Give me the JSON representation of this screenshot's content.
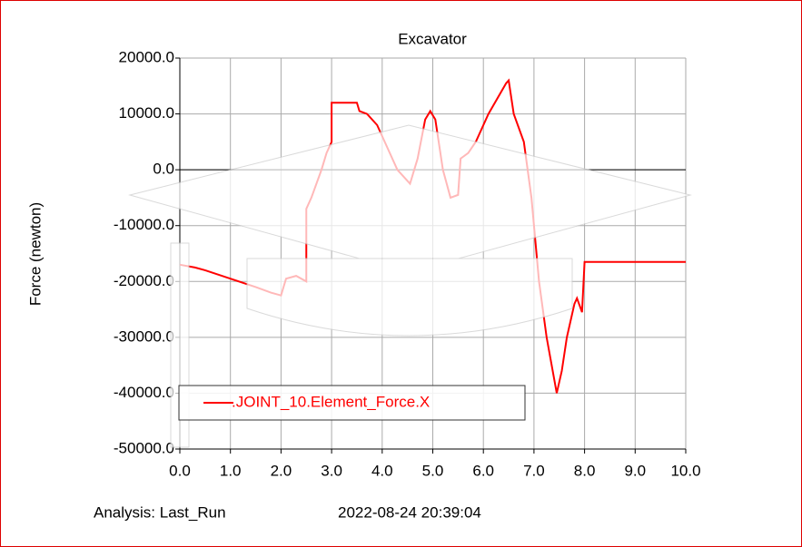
{
  "chart_data": {
    "type": "line",
    "title": "Excavator",
    "y_label": "Force (newton)",
    "x": [
      0,
      0.3,
      0.5,
      1.0,
      1.5,
      1.8,
      2.0,
      2.1,
      2.3,
      2.5,
      2.5,
      2.6,
      2.8,
      2.9,
      3.0,
      3.0,
      3.5,
      3.55,
      3.7,
      3.9,
      4.1,
      4.3,
      4.5,
      4.55,
      4.7,
      4.85,
      4.95,
      5.05,
      5.2,
      5.35,
      5.5,
      5.55,
      5.7,
      5.85,
      6.1,
      6.45,
      6.5,
      6.6,
      6.8,
      6.95,
      7.1,
      7.25,
      7.45,
      7.55,
      7.65,
      7.8,
      7.85,
      7.95,
      8.0,
      10.0
    ],
    "series": [
      {
        "name": ".JOINT_10.Element_Force.X",
        "color": "#ff0000",
        "values": [
          -17000,
          -17500,
          -18000,
          -19500,
          -21000,
          -22000,
          -22500,
          -19500,
          -19000,
          -20000,
          -7000,
          -5000,
          0,
          3000,
          5000,
          12000,
          12000,
          10500,
          10000,
          8000,
          4000,
          0,
          -2000,
          -2500,
          2000,
          9000,
          10500,
          9000,
          0,
          -5000,
          -4500,
          2000,
          3000,
          5000,
          10000,
          15500,
          16000,
          10000,
          5000,
          -5000,
          -20000,
          -30000,
          -40000,
          -36000,
          -30000,
          -24000,
          -23000,
          -25500,
          -16500,
          -16500
        ]
      }
    ],
    "xlim": [
      0,
      10
    ],
    "ylim": [
      -50000,
      20000
    ],
    "xticks": [
      {
        "value": 0,
        "label": "0.0"
      },
      {
        "value": 1,
        "label": "1.0"
      },
      {
        "value": 2,
        "label": "2.0"
      },
      {
        "value": 3,
        "label": "3.0"
      },
      {
        "value": 4,
        "label": "4.0"
      },
      {
        "value": 5,
        "label": "5.0"
      },
      {
        "value": 6,
        "label": "6.0"
      },
      {
        "value": 7,
        "label": "7.0"
      },
      {
        "value": 8,
        "label": "8.0"
      },
      {
        "value": 9,
        "label": "9.0"
      },
      {
        "value": 10,
        "label": "10.0"
      }
    ],
    "yticks": [
      {
        "value": 20000,
        "label": "20000.0"
      },
      {
        "value": 10000,
        "label": "10000.0"
      },
      {
        "value": 0,
        "label": "0.0"
      },
      {
        "value": -10000,
        "label": "-10000.0"
      },
      {
        "value": -20000,
        "label": "-20000.0"
      },
      {
        "value": -30000,
        "label": "-30000.0"
      },
      {
        "value": -40000,
        "label": "-40000.0"
      },
      {
        "value": -50000,
        "label": "-50000.0"
      }
    ],
    "grid": true,
    "legend": "lower left",
    "footer": {
      "analysis": "Analysis:  Last_Run",
      "timestamp": "2022-08-24 20:39:04"
    }
  }
}
